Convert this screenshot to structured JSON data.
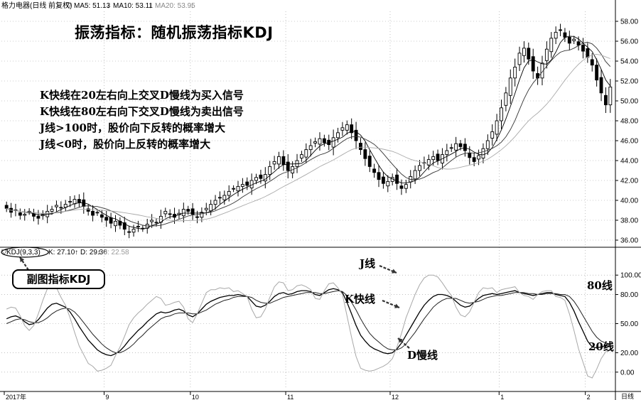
{
  "header": {
    "security": "格力电器(日线 前复权)",
    "ma5_label": "MA5: 51.13",
    "ma10_label": "MA10: 53.11",
    "ma20_label": "MA20: 53.95",
    "arrow_down": "↓"
  },
  "sub_header": {
    "indicator": "KDJ(9,3,3)",
    "k_label": "K: 27.10",
    "d_label": "D: 29.36",
    "j_label": "J: 22.58",
    "arrow_up": "↑"
  },
  "title": "振荡指标：随机振荡指标KDJ",
  "notes": [
    "K快线在20左右向上交叉D慢线为买入信号",
    "K快线在80左右向下交叉D慢线为卖出信号",
    "J线>100时，股价向下反转的概率增大",
    "J线<0时，股价向上反转的概率增大"
  ],
  "badge": "副图指标KDJ",
  "annotations": {
    "j_line": "J线",
    "k_line": "K快线",
    "d_line": "D慢线",
    "line_80": "80线",
    "line_20": "20线"
  },
  "colors": {
    "up": "#000000",
    "down": "#000000",
    "grid": "#9a9a9a",
    "text": "#000000"
  },
  "chart_data": [
    {
      "type": "candlestick",
      "title": "",
      "price_axis": {
        "ylim": [
          35.5,
          59.0
        ],
        "ticks": [
          36.0,
          38.0,
          40.0,
          42.0,
          44.0,
          46.0,
          48.0,
          50.0,
          52.0,
          54.0,
          56.0,
          58.0
        ],
        "tick_labels": [
          "36.00",
          "38.00",
          "40.00",
          "42.00",
          "44.00",
          "46.00",
          "48.00",
          "50.00",
          "52.00",
          "54.00",
          "56.00",
          "58.00"
        ],
        "position": "right"
      },
      "close": [
        39.2,
        38.8,
        39.0,
        38.5,
        38.6,
        38.9,
        38.4,
        38.2,
        38.6,
        38.9,
        39.1,
        39.5,
        39.3,
        39.6,
        39.9,
        40.1,
        39.8,
        39.4,
        38.9,
        38.5,
        38.8,
        38.3,
        38.0,
        37.7,
        37.9,
        37.5,
        37.1,
        36.8,
        37.1,
        37.4,
        37.2,
        37.6,
        38.0,
        37.8,
        38.4,
        38.9,
        38.6,
        38.3,
        38.7,
        39.1,
        38.9,
        38.6,
        38.3,
        38.8,
        39.2,
        39.6,
        40.0,
        40.3,
        40.5,
        40.9,
        41.2,
        41.4,
        41.6,
        41.5,
        42.0,
        42.3,
        42.2,
        42.6,
        43.4,
        43.9,
        44.4,
        43.6,
        43.0,
        43.4,
        44.0,
        44.6,
        45.1,
        45.5,
        45.9,
        46.2,
        45.8,
        45.6,
        46.3,
        46.8,
        47.3,
        47.6,
        46.8,
        46.0,
        45.1,
        44.2,
        43.4,
        42.8,
        42.1,
        41.7,
        41.9,
        42.3,
        41.7,
        41.2,
        41.6,
        42.4,
        43.0,
        43.5,
        43.8,
        44.1,
        44.4,
        44.0,
        44.6,
        45.0,
        45.3,
        45.7,
        45.4,
        45.0,
        44.3,
        43.9,
        44.5,
        45.2,
        46.0,
        46.9,
        48.0,
        49.3,
        50.8,
        52.3,
        53.4,
        54.8,
        55.3,
        54.2,
        53.0,
        52.3,
        53.8,
        55.2,
        56.3,
        56.9,
        57.1,
        56.4,
        55.8,
        56.2,
        55.6,
        55.0,
        54.4,
        53.6,
        52.1,
        50.8,
        49.6,
        51.4
      ],
      "sma_series": [
        "MA5",
        "MA10",
        "MA20"
      ]
    },
    {
      "type": "line",
      "title": "",
      "yaxis": {
        "ylim": [
          -17.0,
          117.0
        ],
        "ticks": [
          0,
          20,
          50,
          80,
          100
        ],
        "tick_labels": [
          "0.00",
          "20.00",
          "50.00",
          "80.00",
          "100.00"
        ],
        "position": "right"
      },
      "x_ticks": [
        {
          "index": 0,
          "label": "2017年"
        },
        {
          "index": 22,
          "label": "9"
        },
        {
          "index": 41,
          "label": "10"
        },
        {
          "index": 62,
          "label": "11"
        },
        {
          "index": 85,
          "label": "12"
        },
        {
          "index": 109,
          "label": "1"
        },
        {
          "index": 128,
          "label": "2"
        }
      ],
      "x_axis_tag": "日线",
      "series": [
        {
          "name": "K",
          "values": [
            55,
            57,
            58,
            56,
            52,
            49,
            50,
            54,
            60,
            66,
            70,
            71,
            69,
            67,
            62,
            55,
            47,
            40,
            33,
            28,
            23,
            20,
            18,
            17,
            19,
            22,
            27,
            33,
            38,
            43,
            47,
            52,
            56,
            60,
            62,
            61,
            62,
            64,
            65,
            63,
            59,
            57,
            60,
            65,
            70,
            73,
            75,
            77,
            78,
            79,
            79,
            80,
            79,
            78,
            73,
            68,
            67,
            69,
            73,
            78,
            81,
            82,
            80,
            81,
            83,
            84,
            84,
            83,
            80,
            79,
            82,
            85,
            86,
            85,
            82,
            72,
            60,
            48,
            38,
            32,
            27,
            24,
            22,
            20,
            19,
            20,
            24,
            30,
            38,
            46,
            54,
            62,
            69,
            74,
            78,
            80,
            80,
            79,
            77,
            73,
            69,
            67,
            68,
            72,
            76,
            79,
            80,
            81,
            80,
            81,
            82,
            83,
            84,
            82,
            81,
            80,
            79,
            80,
            81,
            82,
            82,
            80,
            79,
            78,
            72,
            63,
            52,
            42,
            32,
            26,
            25,
            26,
            27,
            27
          ]
        },
        {
          "name": "D",
          "values": [
            50,
            52,
            54,
            55,
            54,
            52,
            51,
            51,
            53,
            56,
            60,
            63,
            65,
            66,
            65,
            62,
            57,
            51,
            45,
            39,
            34,
            29,
            25,
            22,
            20,
            20,
            22,
            25,
            29,
            34,
            38,
            43,
            47,
            51,
            55,
            57,
            58,
            60,
            61,
            61,
            61,
            60,
            60,
            62,
            64,
            67,
            70,
            72,
            74,
            75,
            77,
            78,
            78,
            78,
            77,
            74,
            72,
            71,
            71,
            73,
            75,
            77,
            78,
            79,
            80,
            81,
            82,
            82,
            82,
            81,
            81,
            82,
            83,
            84,
            83,
            79,
            72,
            64,
            55,
            47,
            40,
            35,
            31,
            27,
            24,
            23,
            23,
            25,
            29,
            35,
            41,
            48,
            55,
            61,
            67,
            71,
            74,
            76,
            76,
            76,
            74,
            72,
            71,
            72,
            73,
            75,
            77,
            78,
            79,
            79,
            80,
            81,
            82,
            82,
            82,
            81,
            81,
            80,
            80,
            81,
            81,
            81,
            80,
            80,
            78,
            73,
            66,
            58,
            50,
            42,
            36,
            32,
            30,
            29
          ]
        },
        {
          "name": "J",
          "values": [
            65,
            67,
            66,
            58,
            48,
            43,
            48,
            60,
            74,
            86,
            90,
            87,
            77,
            69,
            56,
            41,
            27,
            18,
            9,
            6,
            1,
            2,
            4,
            7,
            17,
            26,
            37,
            49,
            56,
            61,
            65,
            70,
            74,
            78,
            76,
            69,
            70,
            72,
            73,
            67,
            55,
            51,
            60,
            71,
            82,
            85,
            85,
            87,
            86,
            87,
            83,
            84,
            81,
            78,
            65,
            56,
            57,
            65,
            77,
            88,
            93,
            92,
            84,
            85,
            89,
            90,
            88,
            85,
            76,
            75,
            84,
            91,
            92,
            87,
            80,
            58,
            36,
            16,
            4,
            2,
            1,
            2,
            4,
            6,
            9,
            14,
            26,
            40,
            56,
            68,
            80,
            90,
            97,
            100,
            100,
            98,
            92,
            85,
            79,
            67,
            59,
            57,
            62,
            72,
            82,
            87,
            86,
            87,
            82,
            85,
            86,
            87,
            88,
            82,
            79,
            78,
            75,
            80,
            83,
            84,
            84,
            78,
            77,
            74,
            60,
            43,
            24,
            10,
            -4,
            -6,
            3,
            14,
            21,
            23
          ]
        }
      ]
    }
  ]
}
